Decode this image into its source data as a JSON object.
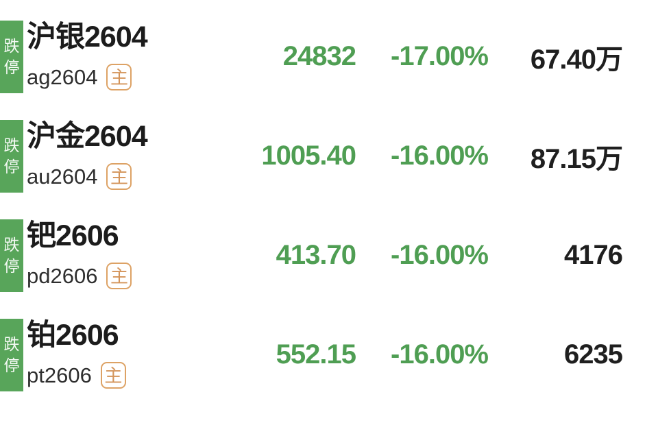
{
  "colors": {
    "tag_green": "#58a55a",
    "value_green": "#4f9e53",
    "text_dark": "#1c1c1c",
    "badge_orange": "#d4945a",
    "background": "#ffffff"
  },
  "rows": [
    {
      "tag": "跌停",
      "name": "沪银2604",
      "code": "ag2604",
      "badge": "主",
      "price": "24832",
      "change": "-17.00%",
      "volume": "67.40万"
    },
    {
      "tag": "跌停",
      "name": "沪金2604",
      "code": "au2604",
      "badge": "主",
      "price": "1005.40",
      "change": "-16.00%",
      "volume": "87.15万"
    },
    {
      "tag": "跌停",
      "name": "钯2606",
      "code": "pd2606",
      "badge": "主",
      "price": "413.70",
      "change": "-16.00%",
      "volume": "4176"
    },
    {
      "tag": "跌停",
      "name": "铂2606",
      "code": "pt2606",
      "badge": "主",
      "price": "552.15",
      "change": "-16.00%",
      "volume": "6235"
    }
  ]
}
